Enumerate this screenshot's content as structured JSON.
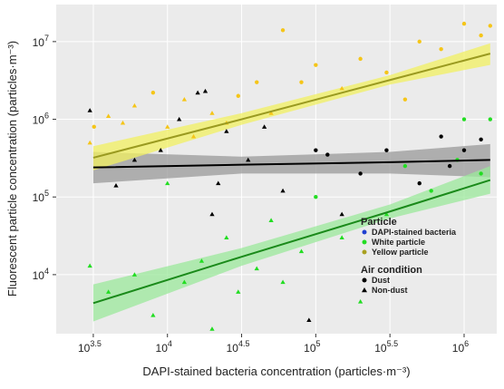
{
  "chart_data": {
    "type": "scatter",
    "x_label": "DAPI-stained bacteria concentration  (particles·m⁻³)",
    "y_label": "Fluorescent particle concentration  (particles·m⁻³)",
    "log_x": true,
    "log_y": true,
    "grid": true,
    "xlim": [
      1778,
      1660000
    ],
    "ylim": [
      1738,
      30000000
    ],
    "xticks": [
      {
        "value": 3162.28,
        "label": "10",
        "sup": "3.5"
      },
      {
        "value": 10000,
        "label": "10",
        "sup": "4"
      },
      {
        "value": 31622.8,
        "label": "10",
        "sup": "4.5"
      },
      {
        "value": 100000,
        "label": "10",
        "sup": "5"
      },
      {
        "value": 316228,
        "label": "10",
        "sup": "5.5"
      },
      {
        "value": 1000000,
        "label": "10",
        "sup": "6"
      }
    ],
    "yticks": [
      {
        "value": 10000,
        "label": "10",
        "sup": "4"
      },
      {
        "value": 100000,
        "label": "10",
        "sup": "5"
      },
      {
        "value": 1000000,
        "label": "10",
        "sup": "6"
      },
      {
        "value": 10000000,
        "label": "10",
        "sup": "7"
      }
    ],
    "legend_title": "Particle",
    "condition_title": "Air  condition",
    "conditions": [
      {
        "name": "Dust",
        "marker": "circle"
      },
      {
        "name": "Non-dust",
        "marker": "triangle"
      }
    ],
    "series": [
      {
        "name": "DAPI-stained bacteria",
        "color": "#000000",
        "legend_color": "#1f3fd0",
        "line_color": "#000000",
        "band_color": "#9a9a9a",
        "x": [
          3000,
          4500,
          6000,
          9000,
          12000,
          16000,
          18000,
          20000,
          22000,
          25000,
          35000,
          45000,
          60000,
          90000,
          100000,
          120000,
          200000,
          300000,
          500000,
          700000,
          1000000,
          1300000,
          800000,
          150000
        ],
        "values": [
          1300000,
          140000,
          300000,
          400000,
          1000000,
          2200000,
          2300000,
          60000,
          150000,
          700000,
          300000,
          800000,
          120000,
          2600,
          400000,
          350000,
          200000,
          400000,
          150000,
          600000,
          400000,
          550000,
          250000,
          60000
        ],
        "condition": [
          1,
          1,
          1,
          1,
          1,
          1,
          1,
          1,
          1,
          1,
          1,
          1,
          1,
          1,
          0,
          0,
          0,
          0,
          0,
          0,
          0,
          0,
          0,
          1
        ],
        "fit": {
          "x": [
            3162,
            31623,
            316228,
            1500000
          ],
          "values": [
            240000,
            260000,
            280000,
            300000
          ],
          "lower": [
            150000,
            200000,
            200000,
            180000
          ],
          "upper": [
            380000,
            330000,
            380000,
            480000
          ]
        }
      },
      {
        "name": "White particle",
        "color": "#22dd22",
        "legend_color": "#22dd22",
        "line_color": "#1a8a1a",
        "band_color": "#9be89b",
        "x": [
          3000,
          4000,
          6000,
          8000,
          10000,
          13000,
          17000,
          20000,
          25000,
          30000,
          40000,
          50000,
          60000,
          80000,
          100000,
          150000,
          200000,
          300000,
          400000,
          600000,
          900000,
          1000000,
          1300000,
          1500000
        ],
        "values": [
          13000,
          6000,
          10000,
          3000,
          150000,
          8000,
          15000,
          2000,
          30000,
          6000,
          12000,
          50000,
          8000,
          20000,
          100000,
          30000,
          4500,
          60000,
          250000,
          120000,
          300000,
          1000000,
          200000,
          1000000
        ],
        "condition": [
          1,
          1,
          1,
          1,
          1,
          1,
          1,
          1,
          1,
          1,
          1,
          1,
          1,
          1,
          0,
          1,
          1,
          1,
          0,
          0,
          0,
          0,
          0,
          0
        ],
        "fit": {
          "x": [
            3162,
            31623,
            316228,
            1500000
          ],
          "values": [
            4300,
            17000,
            65000,
            165000
          ],
          "lower": [
            2500,
            13000,
            53000,
            110000
          ],
          "upper": [
            7500,
            22000,
            80000,
            250000
          ]
        }
      },
      {
        "name": "Yellow particle",
        "color": "#f5c518",
        "legend_color": "#a8a020",
        "line_color": "#9a9a20",
        "band_color": "#f2f060",
        "x": [
          3000,
          3200,
          4000,
          5000,
          6000,
          8000,
          10000,
          13000,
          15000,
          20000,
          25000,
          30000,
          40000,
          50000,
          60000,
          80000,
          100000,
          150000,
          200000,
          300000,
          500000,
          700000,
          1000000,
          1300000,
          1500000,
          400000
        ],
        "values": [
          500000,
          800000,
          1100000,
          900000,
          1500000,
          2200000,
          800000,
          1800000,
          600000,
          1200000,
          900000,
          2000000,
          3000000,
          1200000,
          14000000,
          3000000,
          5000000,
          2500000,
          6000000,
          4000000,
          10000000,
          8000000,
          17000000,
          12000000,
          16000000,
          1800000
        ],
        "condition": [
          1,
          0,
          1,
          1,
          1,
          0,
          1,
          1,
          1,
          1,
          1,
          0,
          0,
          1,
          0,
          0,
          0,
          1,
          0,
          0,
          0,
          0,
          0,
          0,
          0,
          0
        ],
        "fit": {
          "x": [
            3162,
            31623,
            316228,
            1500000
          ],
          "values": [
            320000,
            1000000,
            3200000,
            7000000
          ],
          "lower": [
            220000,
            850000,
            2800000,
            5000000
          ],
          "upper": [
            450000,
            1200000,
            3700000,
            9500000
          ]
        }
      }
    ]
  }
}
